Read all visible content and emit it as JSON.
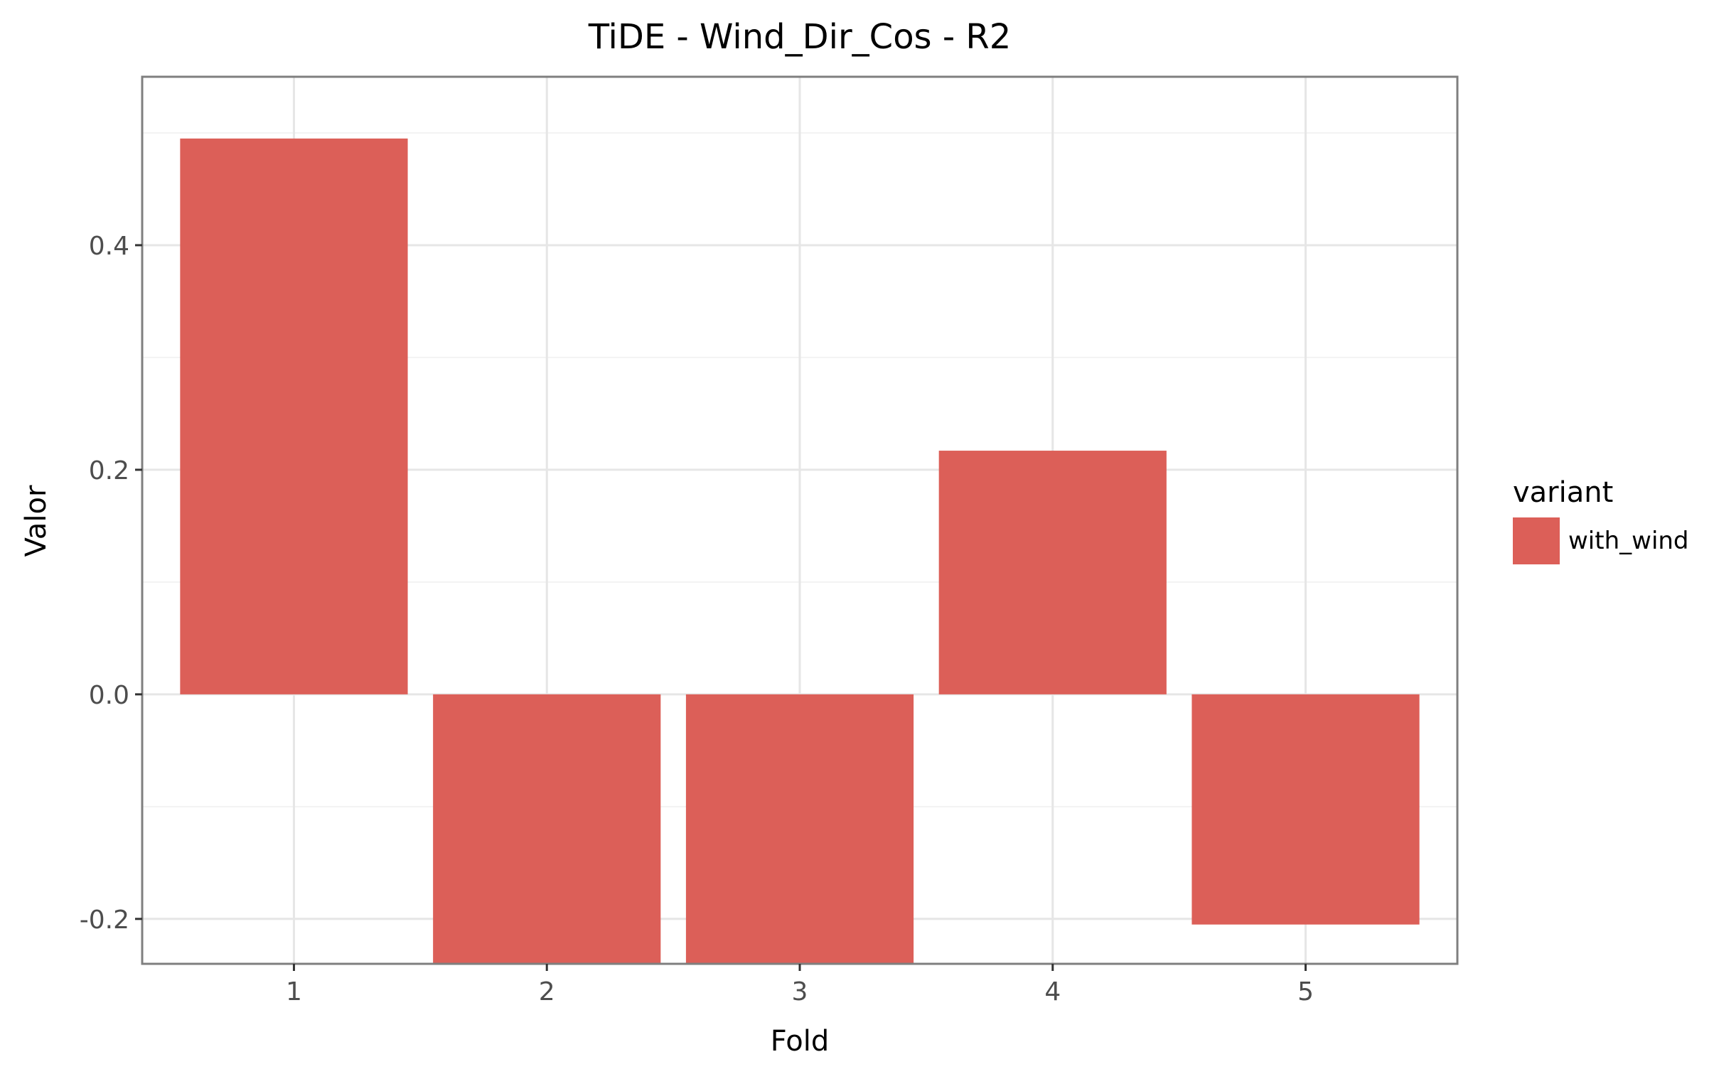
{
  "chart_data": {
    "type": "bar",
    "title": "TiDE - Wind_Dir_Cos - R2",
    "xlabel": "Fold",
    "ylabel": "Valor",
    "categories": [
      "1",
      "2",
      "3",
      "4",
      "5"
    ],
    "series": [
      {
        "name": "with_wind",
        "values": [
          0.495,
          -0.28,
          -0.28,
          0.217,
          -0.205
        ]
      }
    ],
    "ylim": [
      -0.24,
      0.55
    ],
    "yticks": [
      -0.2,
      0.0,
      0.2,
      0.4
    ],
    "ytick_labels": [
      "-0.2",
      "0.0",
      "0.2",
      "0.4"
    ],
    "grid": true,
    "legend": {
      "title": "variant",
      "position": "right"
    },
    "colors": {
      "bar": "#dc5f58",
      "panel_border": "#7f7f7f",
      "grid_major": "#e6e6e6",
      "grid_minor": "#f3f3f3",
      "text": "#4d4d4d"
    }
  }
}
